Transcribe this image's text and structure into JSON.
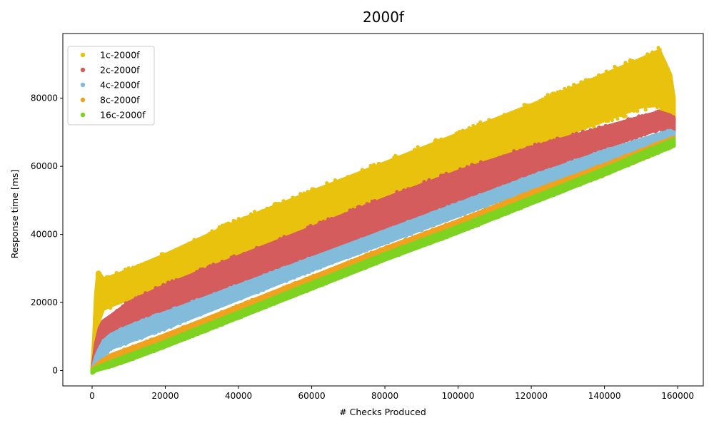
{
  "chart_data": {
    "type": "scatter",
    "title": "2000f",
    "xlabel": "# Checks Produced",
    "ylabel": "Response time [ms]",
    "xlim": [
      -8000,
      167000
    ],
    "ylim": [
      -4500,
      99000
    ],
    "x_ticks": [
      0,
      20000,
      40000,
      60000,
      80000,
      100000,
      120000,
      140000,
      160000
    ],
    "x_tick_labels": [
      "0",
      "20000",
      "40000",
      "60000",
      "80000",
      "100000",
      "120000",
      "140000",
      "160000"
    ],
    "y_ticks": [
      0,
      20000,
      40000,
      60000,
      80000
    ],
    "y_tick_labels": [
      "0",
      "20000",
      "40000",
      "60000",
      "80000"
    ],
    "grid": false,
    "legend_position": "top-left",
    "series": [
      {
        "name": "1c-2000f",
        "color": "#e8c20c",
        "x": [
          0,
          500,
          1000,
          1500,
          2000,
          3000,
          5000,
          10000,
          20000,
          30000,
          40000,
          60000,
          80000,
          100000,
          120000,
          140000,
          150000,
          155000,
          158000,
          159000
        ],
        "y_low": [
          0,
          3000,
          6000,
          10000,
          15000,
          18000,
          19000,
          21000,
          25000,
          29000,
          33000,
          41500,
          49500,
          57500,
          65500,
          73500,
          77500,
          78000,
          73000,
          70000
        ],
        "y_high": [
          0,
          10000,
          22000,
          28000,
          28500,
          27000,
          27500,
          29500,
          34000,
          39000,
          44000,
          52500,
          61000,
          69500,
          78000,
          87000,
          91500,
          94000,
          87000,
          80000
        ]
      },
      {
        "name": "2c-2000f",
        "color": "#d45c5c",
        "x": [
          0,
          500,
          1000,
          2000,
          3000,
          5000,
          10000,
          20000,
          40000,
          60000,
          80000,
          100000,
          120000,
          140000,
          155000,
          158000,
          159000
        ],
        "y_low": [
          0,
          1000,
          2000,
          5000,
          8000,
          11000,
          13000,
          16500,
          25000,
          33500,
          41500,
          49500,
          57500,
          65500,
          71000,
          69500,
          68500
        ],
        "y_high": [
          0,
          4000,
          8000,
          12500,
          14500,
          16000,
          20000,
          25000,
          33500,
          42000,
          50500,
          58500,
          65500,
          71500,
          76000,
          75000,
          74000
        ]
      },
      {
        "name": "4c-2000f",
        "color": "#83bcda",
        "x": [
          0,
          500,
          1000,
          2000,
          3000,
          5000,
          10000,
          20000,
          40000,
          60000,
          80000,
          100000,
          120000,
          140000,
          158000,
          159000
        ],
        "y_low": [
          0,
          500,
          1000,
          2500,
          4000,
          6500,
          8500,
          12500,
          21000,
          29500,
          37500,
          45500,
          53500,
          61000,
          67500,
          67500
        ],
        "y_high": [
          0,
          2000,
          4000,
          6500,
          8500,
          10500,
          13000,
          17000,
          25000,
          33000,
          41000,
          49000,
          57000,
          64500,
          70500,
          70000
        ]
      },
      {
        "name": "8c-2000f",
        "color": "#f0a21e",
        "x": [
          0,
          1000,
          2000,
          5000,
          10000,
          20000,
          40000,
          60000,
          80000,
          100000,
          120000,
          140000,
          159000
        ],
        "y_low": [
          -500,
          300,
          900,
          2000,
          3800,
          7800,
          16000,
          24500,
          33000,
          41000,
          49500,
          57500,
          66000
        ],
        "y_high": [
          500,
          1500,
          2500,
          4500,
          6500,
          10500,
          19000,
          27500,
          36000,
          44000,
          52500,
          60500,
          68500
        ]
      },
      {
        "name": "16c-2000f",
        "color": "#7ed321",
        "x": [
          0,
          1000,
          2000,
          5000,
          10000,
          20000,
          40000,
          60000,
          80000,
          100000,
          120000,
          140000,
          159000
        ],
        "y_low": [
          -700,
          0,
          300,
          1200,
          3000,
          7000,
          15500,
          24000,
          32500,
          40500,
          49000,
          57500,
          66000
        ],
        "y_high": [
          200,
          800,
          1300,
          2600,
          4600,
          8600,
          17200,
          25800,
          34300,
          42300,
          50800,
          59300,
          68000
        ]
      }
    ]
  }
}
